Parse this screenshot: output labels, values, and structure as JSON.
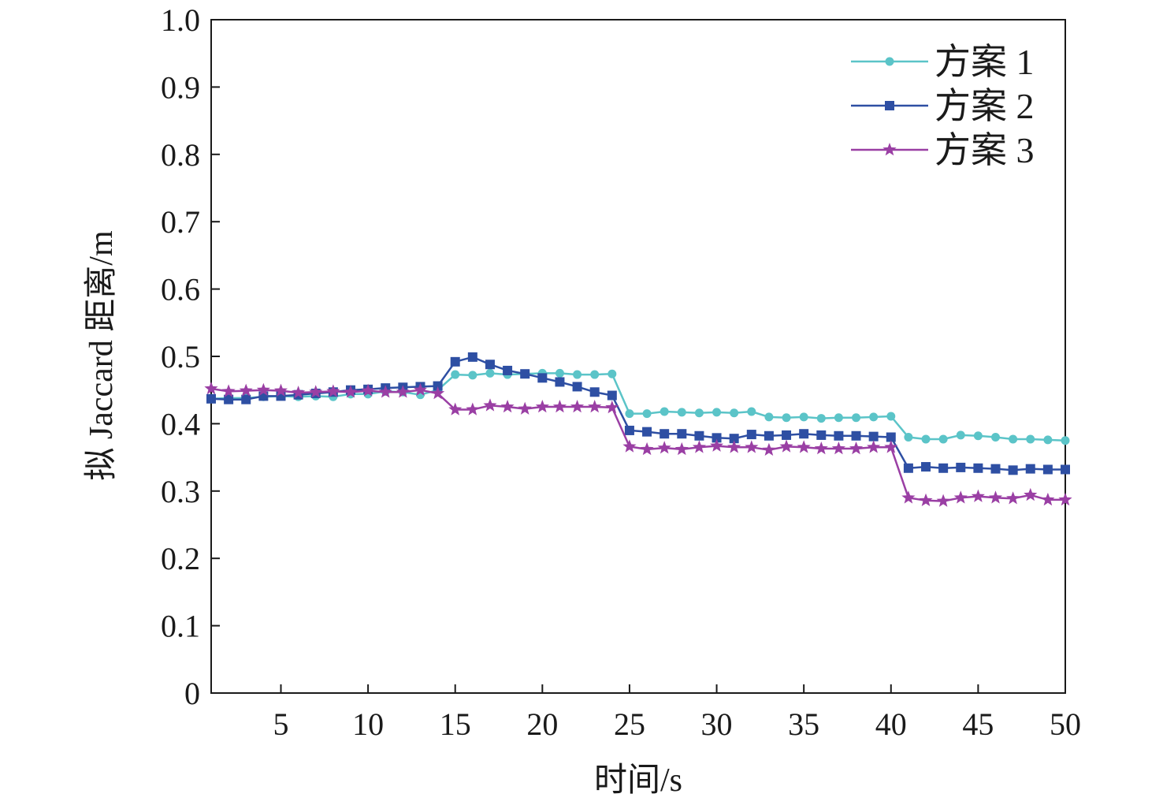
{
  "chart_data": {
    "type": "line",
    "xlabel": "时间/s",
    "ylabel": "拟 Jaccard 距离/m",
    "xlim": [
      1,
      50
    ],
    "ylim": [
      0,
      1.0
    ],
    "x_ticks": [
      5,
      10,
      15,
      20,
      25,
      30,
      35,
      40,
      45,
      50
    ],
    "y_ticks": [
      0,
      0.1,
      0.2,
      0.3,
      0.4,
      0.5,
      0.6,
      0.7,
      0.8,
      0.9,
      1.0
    ],
    "y_tick_labels": [
      "0",
      "0.1",
      "0.2",
      "0.3",
      "0.4",
      "0.5",
      "0.6",
      "0.7",
      "0.8",
      "0.9",
      "1.0"
    ],
    "grid": false,
    "legend_position": "top-right",
    "x": [
      1,
      2,
      3,
      4,
      5,
      6,
      7,
      8,
      9,
      10,
      11,
      12,
      13,
      14,
      15,
      16,
      17,
      18,
      19,
      20,
      21,
      22,
      23,
      24,
      25,
      26,
      27,
      28,
      29,
      30,
      31,
      32,
      33,
      34,
      35,
      36,
      37,
      38,
      39,
      40,
      41,
      42,
      43,
      44,
      45,
      46,
      47,
      48,
      49,
      50
    ],
    "series": [
      {
        "name": "方案 1",
        "color": "#5bc4c8",
        "marker": "circle",
        "values": [
          0.437,
          0.438,
          0.438,
          0.44,
          0.441,
          0.44,
          0.441,
          0.44,
          0.444,
          0.444,
          0.448,
          0.447,
          0.443,
          0.45,
          0.473,
          0.472,
          0.475,
          0.473,
          0.474,
          0.475,
          0.475,
          0.473,
          0.473,
          0.474,
          0.415,
          0.415,
          0.418,
          0.417,
          0.416,
          0.417,
          0.416,
          0.418,
          0.41,
          0.409,
          0.41,
          0.408,
          0.409,
          0.409,
          0.41,
          0.411,
          0.38,
          0.377,
          0.377,
          0.383,
          0.382,
          0.38,
          0.377,
          0.377,
          0.376,
          0.375
        ]
      },
      {
        "name": "方案 2",
        "color": "#2e4fa3",
        "marker": "square",
        "values": [
          0.437,
          0.436,
          0.436,
          0.441,
          0.441,
          0.443,
          0.445,
          0.447,
          0.45,
          0.451,
          0.453,
          0.454,
          0.455,
          0.456,
          0.492,
          0.499,
          0.488,
          0.479,
          0.474,
          0.468,
          0.462,
          0.455,
          0.447,
          0.442,
          0.39,
          0.388,
          0.385,
          0.385,
          0.382,
          0.379,
          0.378,
          0.384,
          0.382,
          0.383,
          0.385,
          0.383,
          0.382,
          0.382,
          0.381,
          0.38,
          0.334,
          0.336,
          0.334,
          0.335,
          0.334,
          0.333,
          0.331,
          0.333,
          0.332,
          0.332
        ]
      },
      {
        "name": "方案 3",
        "color": "#9a3fa4",
        "marker": "star",
        "values": [
          0.452,
          0.448,
          0.449,
          0.45,
          0.449,
          0.446,
          0.447,
          0.448,
          0.447,
          0.449,
          0.447,
          0.447,
          0.45,
          0.445,
          0.421,
          0.421,
          0.427,
          0.425,
          0.422,
          0.425,
          0.425,
          0.425,
          0.425,
          0.424,
          0.366,
          0.362,
          0.364,
          0.362,
          0.365,
          0.367,
          0.365,
          0.365,
          0.361,
          0.366,
          0.365,
          0.363,
          0.363,
          0.363,
          0.365,
          0.365,
          0.29,
          0.286,
          0.285,
          0.29,
          0.292,
          0.29,
          0.289,
          0.294,
          0.287,
          0.287
        ]
      }
    ]
  }
}
